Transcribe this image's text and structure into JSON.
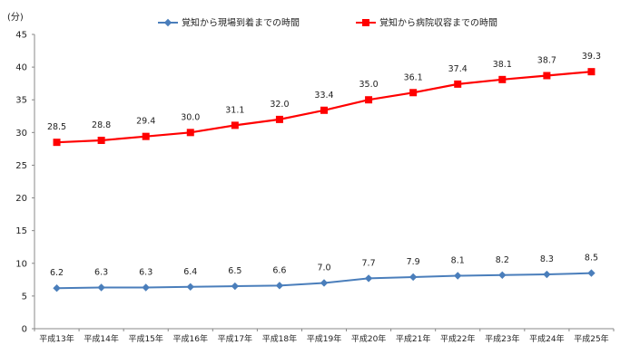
{
  "chart_data": {
    "type": "line",
    "title": "",
    "xlabel": "",
    "ylabel": "(分)",
    "ylim": [
      0,
      45
    ],
    "yticks": [
      0,
      5,
      10,
      15,
      20,
      25,
      30,
      35,
      40,
      45
    ],
    "grid": false,
    "legend_position": "top",
    "categories": [
      "平成13年",
      "平成14年",
      "平成15年",
      "平成16年",
      "平成17年",
      "平成18年",
      "平成19年",
      "平成20年",
      "平成21年",
      "平成22年",
      "平成23年",
      "平成24年",
      "平成25年"
    ],
    "series": [
      {
        "name": "覚知から現場到着までの時間",
        "color": "#4a7ebb",
        "marker": "diamond",
        "values": [
          6.2,
          6.3,
          6.3,
          6.4,
          6.5,
          6.6,
          7.0,
          7.7,
          7.9,
          8.1,
          8.2,
          8.3,
          8.5
        ]
      },
      {
        "name": "覚知から病院収容までの時間",
        "color": "#ff0000",
        "marker": "square",
        "values": [
          28.5,
          28.8,
          29.4,
          30.0,
          31.1,
          32.0,
          33.4,
          35.0,
          36.1,
          37.4,
          38.1,
          38.7,
          39.3
        ]
      }
    ]
  }
}
